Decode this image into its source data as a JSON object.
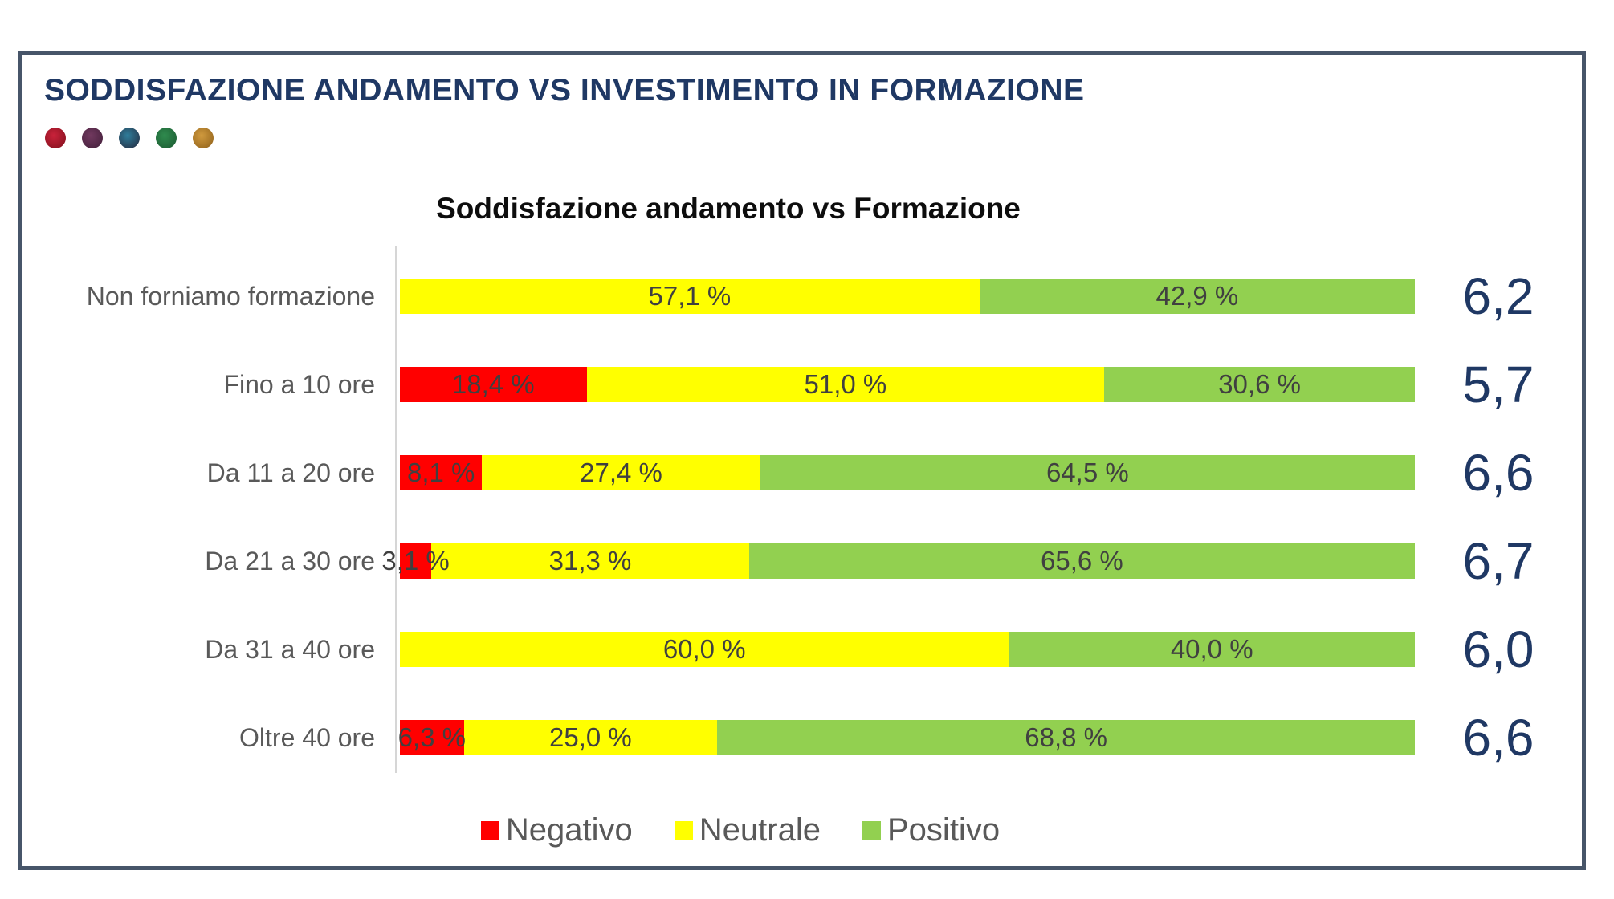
{
  "header": {
    "title": "SODDISFAZIONE ANDAMENTO VS INVESTIMENTO IN FORMAZIONE",
    "title_color": "#1F3864",
    "dots": [
      {
        "name": "dot-crimson",
        "inner": "#C9223A",
        "outer": "#8E1322"
      },
      {
        "name": "dot-plum",
        "inner": "#71395F",
        "outer": "#4A2340"
      },
      {
        "name": "dot-teal",
        "inner": "#2F7E9B",
        "outer": "#27394F"
      },
      {
        "name": "dot-green",
        "inner": "#2F8B4E",
        "outer": "#1F6236"
      },
      {
        "name": "dot-amber",
        "inner": "#D09A3E",
        "outer": "#9A6A20"
      }
    ]
  },
  "chart_data": {
    "type": "bar",
    "orientation": "horizontal",
    "stacked": true,
    "title": "Soddisfazione andamento vs Formazione",
    "categories": [
      "Non forniamo formazione",
      "Fino a 10 ore",
      "Da 11 a 20 ore",
      "Da 21 a 30 ore",
      "Da 31 a 40 ore",
      "Oltre 40 ore"
    ],
    "series": [
      {
        "name": "Negativo",
        "color": "#FF0000",
        "values": [
          0,
          18.4,
          8.1,
          3.1,
          0,
          6.3
        ],
        "labels": [
          "",
          "18,4 %",
          "8,1 %",
          "3,1 %",
          "",
          "6,3 %"
        ]
      },
      {
        "name": "Neutrale",
        "color": "#FFFF00",
        "values": [
          57.1,
          51.0,
          27.4,
          31.3,
          60.0,
          25.0
        ],
        "labels": [
          "57,1 %",
          "51,0 %",
          "27,4 %",
          "31,3 %",
          "60,0 %",
          "25,0 %"
        ]
      },
      {
        "name": "Positivo",
        "color": "#92D050",
        "values": [
          42.9,
          30.6,
          64.5,
          65.6,
          40.0,
          68.8
        ],
        "labels": [
          "42,9 %",
          "30,6 %",
          "64,5 %",
          "65,6 %",
          "40,0 %",
          "68,8 %"
        ]
      }
    ],
    "scores": [
      "6,2",
      "5,7",
      "6,6",
      "6,7",
      "6,0",
      "6,6"
    ],
    "xlim": [
      0,
      100
    ],
    "grid": false,
    "legend": [
      "Negativo",
      "Neutrale",
      "Positivo"
    ],
    "legend_position": "bottom",
    "score_color": "#1F3864",
    "axis_color": "#D6D6D6"
  }
}
